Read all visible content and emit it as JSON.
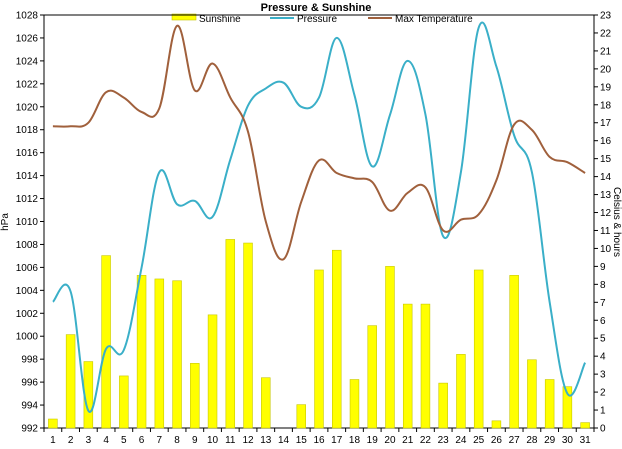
{
  "chart_data": {
    "type": "bar",
    "title": "Pressure & Sunshine",
    "legend_position": "top",
    "left_axis": {
      "label": "hPa",
      "range": [
        992,
        1028
      ],
      "step": 2
    },
    "right_axis": {
      "label": "Celsius & hours",
      "range": [
        0,
        23
      ],
      "step": 1
    },
    "categories": [
      "1",
      "2",
      "3",
      "4",
      "5",
      "6",
      "7",
      "8",
      "9",
      "10",
      "11",
      "12",
      "13",
      "14",
      "15",
      "16",
      "17",
      "18",
      "19",
      "20",
      "21",
      "22",
      "23",
      "24",
      "25",
      "26",
      "27",
      "28",
      "29",
      "30",
      "31"
    ],
    "grid": false,
    "series": [
      {
        "name": "Sunshine",
        "type": "bar",
        "axis": "right",
        "color": "#ffff00",
        "values": [
          0.5,
          5.2,
          3.7,
          9.6,
          2.9,
          8.5,
          8.3,
          8.2,
          3.6,
          6.3,
          10.5,
          10.3,
          2.8,
          0,
          1.3,
          8.8,
          9.9,
          2.7,
          5.7,
          9.0,
          6.9,
          6.9,
          2.5,
          4.1,
          8.8,
          0.4,
          8.5,
          3.8,
          2.7,
          2.3,
          0.3
        ]
      },
      {
        "name": "Pressure",
        "type": "line",
        "axis": "left",
        "color": "#3aafc8",
        "values": [
          1003.0,
          1003.9,
          993.5,
          998.9,
          998.8,
          1006.0,
          1014.3,
          1011.5,
          1011.8,
          1010.4,
          1015.4,
          1020.1,
          1021.6,
          1022.1,
          1020.0,
          1020.8,
          1026.0,
          1021.0,
          1014.8,
          1019.3,
          1024.0,
          1019.3,
          1008.7,
          1014.3,
          1026.9,
          1023.5,
          1017.5,
          1014.3,
          1003.0,
          995.0,
          997.7
        ]
      },
      {
        "name": "Max Temperature",
        "type": "line",
        "axis": "right",
        "color": "#a0603c",
        "values": [
          16.8,
          16.8,
          17.0,
          18.7,
          18.4,
          17.6,
          17.8,
          22.4,
          18.8,
          20.3,
          18.4,
          16.5,
          11.5,
          9.4,
          12.6,
          14.9,
          14.2,
          13.9,
          13.7,
          12.1,
          13.1,
          13.4,
          11.0,
          11.6,
          11.9,
          13.8,
          16.9,
          16.6,
          15.1,
          14.8,
          14.2
        ]
      }
    ]
  }
}
